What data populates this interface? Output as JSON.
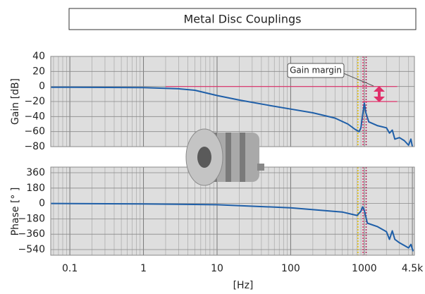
{
  "chart_data": [
    {
      "type": "line",
      "title": "Metal Disc Couplings",
      "ylabel": "Gain [dB]",
      "annotation": "Gain margin",
      "xscale": "log",
      "xlim": [
        0.055,
        4800
      ],
      "xticks": [
        0.1,
        1,
        10,
        100,
        1000
      ],
      "ylim": [
        -80,
        40
      ],
      "yticks": [
        40,
        20,
        0,
        {
          "value": -20,
          "label": "−20"
        },
        {
          "value": -40,
          "label": "−40"
        },
        {
          "value": -60,
          "label": "−60"
        },
        {
          "value": -80,
          "label": "−80"
        }
      ],
      "grid": true,
      "hlines": [
        {
          "y": 0,
          "from": 2,
          "to": 2800,
          "color": "#e0306a"
        },
        {
          "y": -20,
          "from": 950,
          "to": 2800,
          "color": "#e0306a"
        }
      ],
      "vlines": [
        {
          "x": 820,
          "color": "#e6c200"
        },
        {
          "x": 960,
          "color": "#e0306a"
        },
        {
          "x": 1060,
          "color": "#b0205a"
        }
      ],
      "series": [
        {
          "color": "#1f5fa8",
          "x": [
            0.055,
            0.1,
            1,
            3,
            5,
            10,
            20,
            50,
            100,
            200,
            400,
            600,
            750,
            850,
            900,
            950,
            1000,
            1050,
            1150,
            1500,
            2000,
            2200,
            2400,
            2600,
            3000,
            3500,
            4000,
            4300,
            4500
          ],
          "values": [
            -1,
            -1,
            -1.5,
            -3,
            -5,
            -12,
            -18,
            -25,
            -30,
            -35,
            -42,
            -50,
            -57,
            -60,
            -55,
            -38,
            -22,
            -35,
            -47,
            -52,
            -55,
            -62,
            -58,
            -70,
            -68,
            -72,
            -78,
            -70,
            -80
          ]
        }
      ]
    },
    {
      "type": "line",
      "ylabel": "Phase [° ]",
      "xlabel": "[Hz]",
      "xscale": "log",
      "xlim": [
        0.055,
        4800
      ],
      "xticks": [
        0.1,
        1,
        10,
        100,
        1000,
        {
          "value": 4500,
          "label": "4.5k"
        }
      ],
      "ylim": [
        -606,
        426
      ],
      "yticks": [
        360,
        180,
        0,
        {
          "value": -180,
          "label": "−180"
        },
        {
          "value": -360,
          "label": "−360"
        },
        {
          "value": -540,
          "label": "−540"
        }
      ],
      "grid": true,
      "vlines": [
        {
          "x": 820,
          "color": "#e6c200"
        },
        {
          "x": 960,
          "color": "#e0306a"
        },
        {
          "x": 1060,
          "color": "#b0205a"
        }
      ],
      "series": [
        {
          "color": "#1f5fa8",
          "x": [
            0.055,
            1,
            10,
            100,
            500,
            800,
            900,
            950,
            1000,
            1100,
            1500,
            2000,
            2200,
            2400,
            2600,
            3000,
            4000,
            4300,
            4600
          ],
          "values": [
            0,
            -5,
            -15,
            -50,
            -100,
            -140,
            -90,
            -40,
            -80,
            -230,
            -270,
            -330,
            -420,
            -320,
            -420,
            -460,
            -520,
            -480,
            -560
          ]
        }
      ]
    }
  ]
}
